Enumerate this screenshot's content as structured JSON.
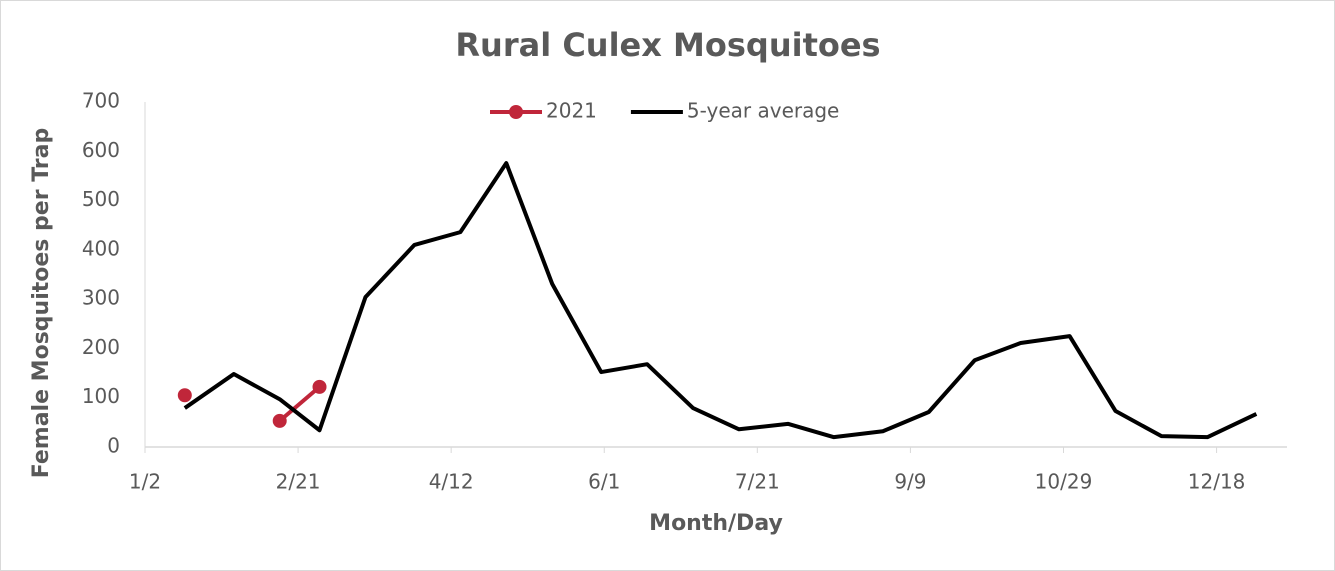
{
  "chart_data": {
    "type": "line",
    "title": "Rural Culex Mosquitoes",
    "x_label": "Month/Day",
    "y_label": "Female Mosquitoes per Trap",
    "x": [
      15,
      31,
      46,
      59,
      74,
      90,
      105,
      120,
      135,
      151,
      166,
      181,
      196,
      212,
      227,
      243,
      258,
      273,
      288,
      304,
      319,
      334,
      349,
      365
    ],
    "series": [
      {
        "name": "2021",
        "color": "#c0263a",
        "markers": true,
        "values": [
          105,
          null,
          53,
          122,
          null,
          null,
          null,
          null,
          null,
          null,
          null,
          null,
          null,
          null,
          null,
          null,
          null,
          null,
          null,
          null,
          null,
          null,
          null,
          null
        ]
      },
      {
        "name": "5-year average",
        "color": "#000000",
        "markers": false,
        "values": [
          79,
          148,
          97,
          34,
          304,
          410,
          436,
          576,
          331,
          152,
          168,
          79,
          36,
          47,
          20,
          32,
          71,
          176,
          211,
          225,
          73,
          22,
          20,
          67
        ]
      }
    ],
    "xlim": [
      2,
      375
    ],
    "xticks": [
      {
        "value": 2,
        "label": "1/2"
      },
      {
        "value": 52,
        "label": "2/21"
      },
      {
        "value": 102,
        "label": "4/12"
      },
      {
        "value": 152,
        "label": "6/1"
      },
      {
        "value": 202,
        "label": "7/21"
      },
      {
        "value": 252,
        "label": "9/9"
      },
      {
        "value": 302,
        "label": "10/29"
      },
      {
        "value": 352,
        "label": "12/18"
      }
    ],
    "ylim": [
      0,
      700
    ],
    "yticks": [
      0,
      100,
      200,
      300,
      400,
      500,
      600,
      700
    ],
    "grid": false,
    "legend": "top"
  }
}
